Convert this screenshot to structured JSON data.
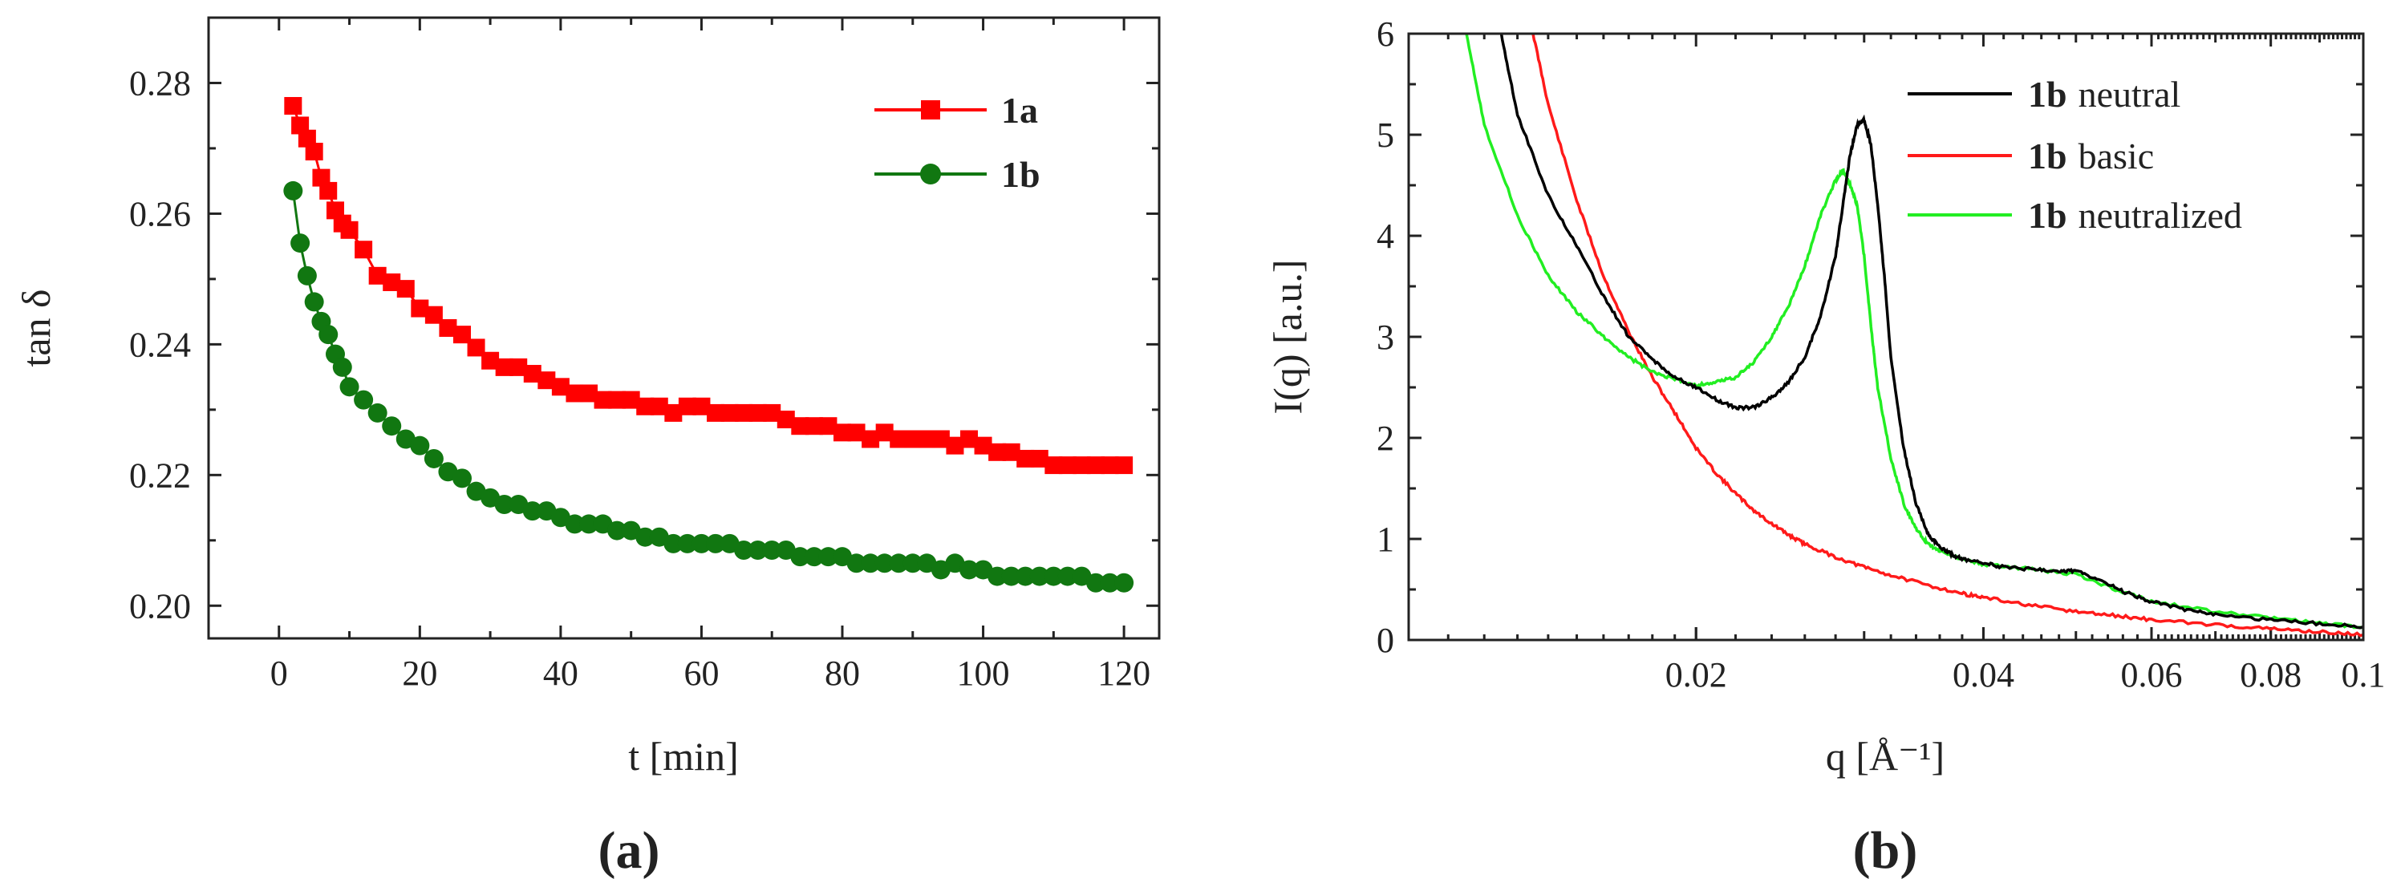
{
  "colors": {
    "series_1a": "#ff0000",
    "series_1b": "#117711",
    "neutral": "#000000",
    "basic": "#ff1a1a",
    "neutralized": "#22ee22",
    "axis": "#222222"
  },
  "chart_data": [
    {
      "type": "scatter",
      "panel_label": "(a)",
      "title": "",
      "xlabel": "t [min]",
      "ylabel": "tan δ",
      "xlim": [
        -10,
        125
      ],
      "ylim": [
        0.195,
        0.29
      ],
      "x_ticks": [
        "0",
        "20",
        "40",
        "60",
        "80",
        "100",
        "120"
      ],
      "y_ticks": [
        "0.20",
        "0.22",
        "0.24",
        "0.26",
        "0.28"
      ],
      "legend": {
        "position": "top-right",
        "entries": [
          "1a",
          "1b"
        ]
      },
      "series": [
        {
          "name": "1a",
          "marker": "square",
          "x": [
            2,
            3,
            4,
            5,
            6,
            7,
            8,
            9,
            10,
            12,
            14,
            16,
            18,
            20,
            22,
            24,
            26,
            28,
            30,
            32,
            34,
            36,
            38,
            40,
            42,
            44,
            46,
            48,
            50,
            52,
            54,
            56,
            58,
            60,
            62,
            64,
            66,
            68,
            70,
            72,
            74,
            76,
            78,
            80,
            82,
            84,
            86,
            88,
            90,
            92,
            94,
            96,
            98,
            100,
            102,
            104,
            106,
            108,
            110,
            112,
            114,
            116,
            118,
            120
          ],
          "values": [
            0.2765,
            0.2735,
            0.2715,
            0.2695,
            0.2655,
            0.2635,
            0.2605,
            0.2585,
            0.2575,
            0.2545,
            0.2505,
            0.2495,
            0.2485,
            0.2455,
            0.2445,
            0.2425,
            0.2415,
            0.2395,
            0.2375,
            0.2365,
            0.2365,
            0.2355,
            0.2345,
            0.2335,
            0.2325,
            0.2325,
            0.2315,
            0.2315,
            0.2315,
            0.2305,
            0.2305,
            0.2295,
            0.2305,
            0.2305,
            0.2295,
            0.2295,
            0.2295,
            0.2295,
            0.2295,
            0.2285,
            0.2275,
            0.2275,
            0.2275,
            0.2265,
            0.2265,
            0.2255,
            0.2265,
            0.2255,
            0.2255,
            0.2255,
            0.2255,
            0.2245,
            0.2255,
            0.2245,
            0.2235,
            0.2235,
            0.2225,
            0.2225,
            0.2215,
            0.2215,
            0.2215,
            0.2215,
            0.2215,
            0.2215
          ]
        },
        {
          "name": "1b",
          "marker": "circle",
          "x": [
            2,
            3,
            4,
            5,
            6,
            7,
            8,
            9,
            10,
            12,
            14,
            16,
            18,
            20,
            22,
            24,
            26,
            28,
            30,
            32,
            34,
            36,
            38,
            40,
            42,
            44,
            46,
            48,
            50,
            52,
            54,
            56,
            58,
            60,
            62,
            64,
            66,
            68,
            70,
            72,
            74,
            76,
            78,
            80,
            82,
            84,
            86,
            88,
            90,
            92,
            94,
            96,
            98,
            100,
            102,
            104,
            106,
            108,
            110,
            112,
            114,
            116,
            118,
            120
          ],
          "values": [
            0.2635,
            0.2555,
            0.2505,
            0.2465,
            0.2435,
            0.2415,
            0.2385,
            0.2365,
            0.2335,
            0.2315,
            0.2295,
            0.2275,
            0.2255,
            0.2245,
            0.2225,
            0.2205,
            0.2195,
            0.2175,
            0.2165,
            0.2155,
            0.2155,
            0.2145,
            0.2145,
            0.2135,
            0.2125,
            0.2125,
            0.2125,
            0.2115,
            0.2115,
            0.2105,
            0.2105,
            0.2095,
            0.2095,
            0.2095,
            0.2095,
            0.2095,
            0.2085,
            0.2085,
            0.2085,
            0.2085,
            0.2075,
            0.2075,
            0.2075,
            0.2075,
            0.2065,
            0.2065,
            0.2065,
            0.2065,
            0.2065,
            0.2065,
            0.2055,
            0.2065,
            0.2055,
            0.2055,
            0.2045,
            0.2045,
            0.2045,
            0.2045,
            0.2045,
            0.2045,
            0.2045,
            0.2035,
            0.2035,
            0.2035
          ]
        }
      ]
    },
    {
      "type": "line",
      "panel_label": "(b)",
      "title": "",
      "xlabel": "q [Å⁻¹]",
      "ylabel": "I(q) [a.u.]",
      "x_scale": "log",
      "xlim": [
        0.01,
        0.1
      ],
      "ylim": [
        0,
        6
      ],
      "x_ticks": [
        "0.02",
        "0.04",
        "0.06",
        "0.08",
        "0.1"
      ],
      "y_ticks": [
        "0",
        "1",
        "2",
        "3",
        "4",
        "5",
        "6"
      ],
      "legend": {
        "position": "top-right",
        "entries": [
          {
            "bold": "1b",
            "text": "neutral"
          },
          {
            "bold": "1b",
            "text": "basic"
          },
          {
            "bold": "1b",
            "text": "neutralized"
          }
        ]
      },
      "series": [
        {
          "name": "1b neutral",
          "x": [
            0.0125,
            0.013,
            0.014,
            0.015,
            0.016,
            0.017,
            0.018,
            0.019,
            0.02,
            0.021,
            0.022,
            0.023,
            0.024,
            0.025,
            0.026,
            0.027,
            0.028,
            0.0285,
            0.029,
            0.0295,
            0.03,
            0.0305,
            0.031,
            0.0315,
            0.032,
            0.033,
            0.034,
            0.035,
            0.036,
            0.037,
            0.038,
            0.04,
            0.042,
            0.045,
            0.048,
            0.05,
            0.053,
            0.056,
            0.06,
            0.065,
            0.07,
            0.08,
            0.09,
            0.1
          ],
          "values": [
            6.0,
            5.2,
            4.4,
            3.9,
            3.4,
            3.0,
            2.78,
            2.6,
            2.5,
            2.38,
            2.3,
            2.3,
            2.4,
            2.55,
            2.8,
            3.2,
            3.8,
            4.3,
            4.8,
            5.1,
            5.15,
            4.9,
            4.3,
            3.6,
            2.8,
            1.9,
            1.35,
            1.05,
            0.92,
            0.85,
            0.8,
            0.76,
            0.72,
            0.7,
            0.68,
            0.68,
            0.6,
            0.48,
            0.38,
            0.3,
            0.25,
            0.2,
            0.16,
            0.13
          ]
        },
        {
          "name": "1b basic",
          "x": [
            0.0135,
            0.014,
            0.015,
            0.016,
            0.017,
            0.018,
            0.019,
            0.02,
            0.021,
            0.022,
            0.023,
            0.024,
            0.025,
            0.026,
            0.028,
            0.03,
            0.032,
            0.035,
            0.038,
            0.04,
            0.045,
            0.05,
            0.055,
            0.06,
            0.07,
            0.08,
            0.09,
            0.1
          ],
          "values": [
            6.0,
            5.3,
            4.35,
            3.6,
            3.05,
            2.6,
            2.25,
            1.9,
            1.65,
            1.45,
            1.28,
            1.15,
            1.04,
            0.95,
            0.82,
            0.72,
            0.64,
            0.54,
            0.46,
            0.42,
            0.34,
            0.28,
            0.24,
            0.2,
            0.15,
            0.11,
            0.08,
            0.05
          ]
        },
        {
          "name": "1b neutralized",
          "x": [
            0.0115,
            0.012,
            0.013,
            0.014,
            0.015,
            0.016,
            0.017,
            0.018,
            0.019,
            0.02,
            0.021,
            0.022,
            0.023,
            0.024,
            0.025,
            0.026,
            0.027,
            0.028,
            0.0285,
            0.029,
            0.0295,
            0.03,
            0.0305,
            0.031,
            0.032,
            0.033,
            0.034,
            0.035,
            0.036,
            0.038,
            0.04,
            0.045,
            0.05,
            0.055,
            0.06,
            0.07,
            0.08,
            0.09,
            0.1
          ],
          "values": [
            6.0,
            5.1,
            4.2,
            3.6,
            3.25,
            3.0,
            2.8,
            2.65,
            2.58,
            2.52,
            2.55,
            2.6,
            2.75,
            3.0,
            3.3,
            3.7,
            4.2,
            4.55,
            4.65,
            4.5,
            4.3,
            3.8,
            3.1,
            2.5,
            1.8,
            1.35,
            1.1,
            0.95,
            0.88,
            0.8,
            0.75,
            0.7,
            0.65,
            0.5,
            0.38,
            0.28,
            0.22,
            0.17,
            0.12
          ]
        }
      ]
    }
  ]
}
